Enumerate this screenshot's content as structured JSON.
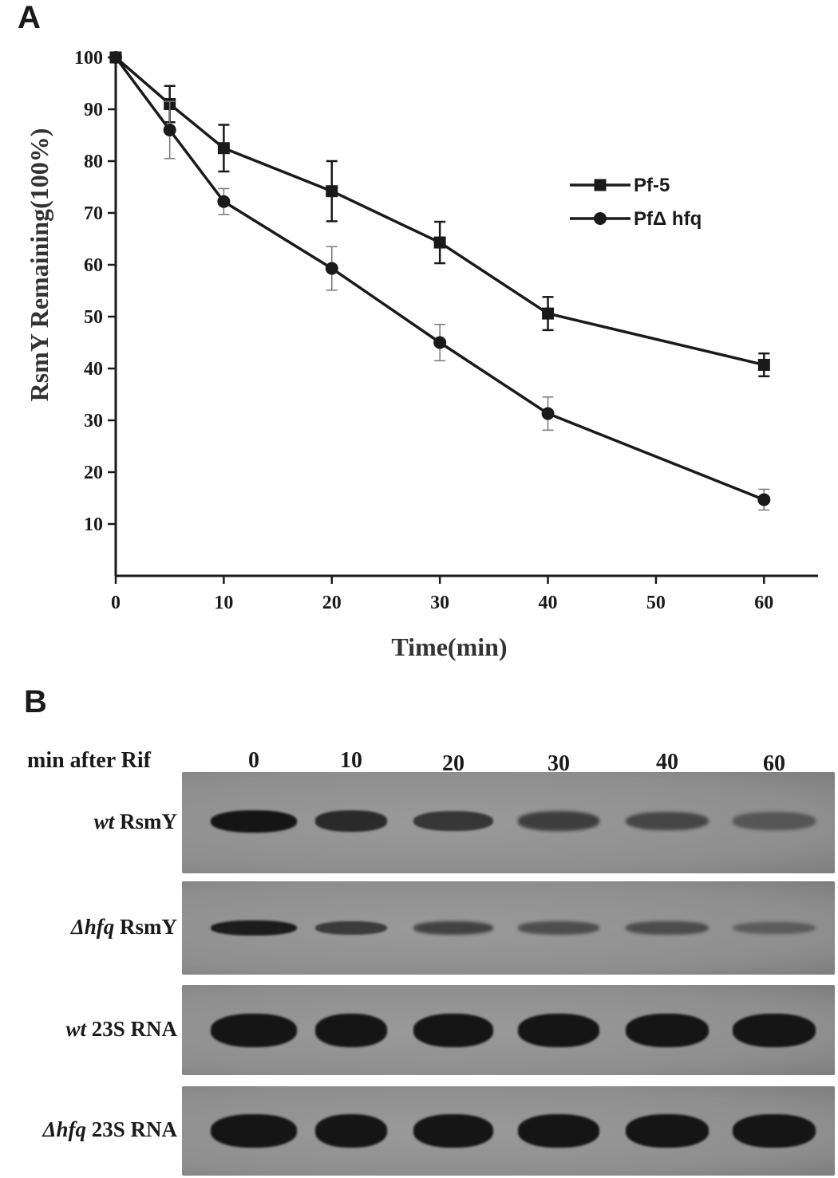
{
  "panel_a_label": "A",
  "panel_b_label": "B",
  "chart_data": {
    "type": "line",
    "xlabel": "Time(min)",
    "ylabel": "RsmY Remaining(100%)",
    "xlim": [
      0,
      65
    ],
    "ylim": [
      0,
      100
    ],
    "xticks": [
      0,
      10,
      20,
      30,
      40,
      50,
      60
    ],
    "yticks": [
      10,
      20,
      30,
      40,
      50,
      60,
      70,
      80,
      90,
      100
    ],
    "legend_position": "top-right",
    "grid": false,
    "x": [
      0,
      5,
      10,
      20,
      30,
      40,
      60
    ],
    "series": [
      {
        "name": "Pf-5",
        "marker": "square",
        "values": [
          100,
          91,
          82.5,
          74.2,
          64.3,
          50.6,
          40.7
        ],
        "errors": [
          0,
          3.5,
          4.5,
          5.8,
          4.0,
          3.2,
          2.2
        ]
      },
      {
        "name": "PfΔ hfq",
        "marker": "circle",
        "values": [
          100,
          86,
          72.2,
          59.3,
          45,
          31.3,
          14.7
        ],
        "errors": [
          0,
          5.5,
          2.5,
          4.2,
          3.5,
          3.2,
          2.0
        ]
      }
    ]
  },
  "blot": {
    "header_label": "min after Rif",
    "lanes": [
      "0",
      "10",
      "20",
      "30",
      "40",
      "60"
    ],
    "rows": [
      {
        "italic": "wt",
        "rest": " RsmY",
        "intensities": [
          1.0,
          0.78,
          0.66,
          0.58,
          0.48,
          0.3
        ]
      },
      {
        "italic": "Δhfq",
        "rest": " RsmY",
        "intensities": [
          0.92,
          0.6,
          0.55,
          0.42,
          0.42,
          0.22
        ]
      },
      {
        "italic": "wt",
        "rest": " 23S RNA",
        "intensities": [
          1.0,
          1.0,
          1.0,
          1.0,
          1.0,
          1.0
        ]
      },
      {
        "italic": "Δhfq",
        "rest": " 23S RNA",
        "intensities": [
          1.0,
          1.0,
          1.0,
          1.0,
          1.0,
          1.0
        ]
      }
    ]
  },
  "colors": {
    "line": "#1a1a1a",
    "blot_bg": "#8e8e8e",
    "band": "#151515"
  }
}
